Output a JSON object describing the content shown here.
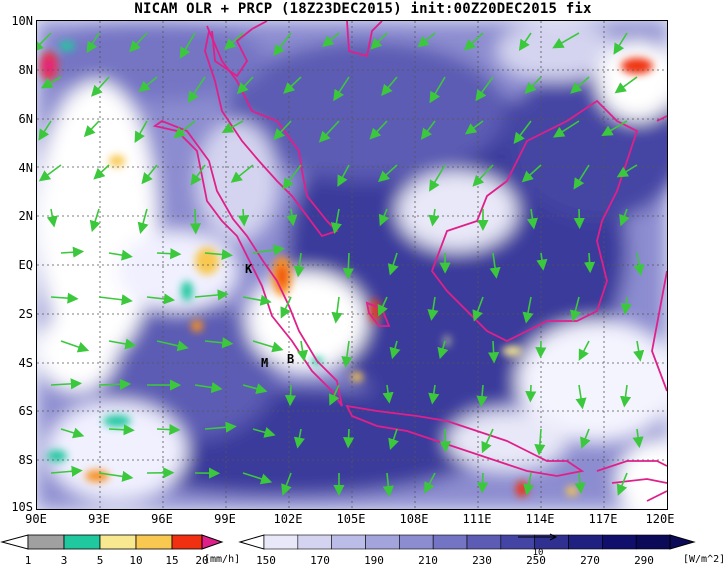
{
  "title": "NICAM OLR + PRCP (18Z23DEC2015) init:00Z20DEC2015 fix",
  "lat_labels": [
    "10N",
    "8N",
    "6N",
    "4N",
    "2N",
    "EQ",
    "2S",
    "4S",
    "6S",
    "8S",
    "10S"
  ],
  "lon_labels": [
    "90E",
    "93E",
    "96E",
    "99E",
    "102E",
    "105E",
    "108E",
    "111E",
    "114E",
    "117E",
    "120E"
  ],
  "place_labels": [
    "K",
    "M",
    "B"
  ],
  "precip_legend": {
    "labels": [
      "1",
      "3",
      "5",
      "10",
      "15",
      "20"
    ],
    "unit": "[mm/h]",
    "colors": [
      "#a0a0a0",
      "#20c8a0",
      "#f8e890",
      "#f8c850",
      "#f89020",
      "#f03010",
      "#e0208a"
    ]
  },
  "olr_legend": {
    "labels": [
      "150",
      "170",
      "190",
      "210",
      "230",
      "250",
      "270",
      "290"
    ],
    "unit": "[W/m^2]",
    "colors": [
      "#ffffff",
      "#e8e8f8",
      "#d4d4f0",
      "#bcbce8",
      "#a4a4dc",
      "#8c8cd0",
      "#7474c4",
      "#5c5cb4",
      "#4444a4",
      "#303090",
      "#202080",
      "#10106c",
      "#0a0a58"
    ]
  },
  "wind_reference_label": "10",
  "colors": {
    "wind_arrow": "#3cc83c",
    "coastline": "#e0208a",
    "ocean_base": "#e8ebf8"
  }
}
